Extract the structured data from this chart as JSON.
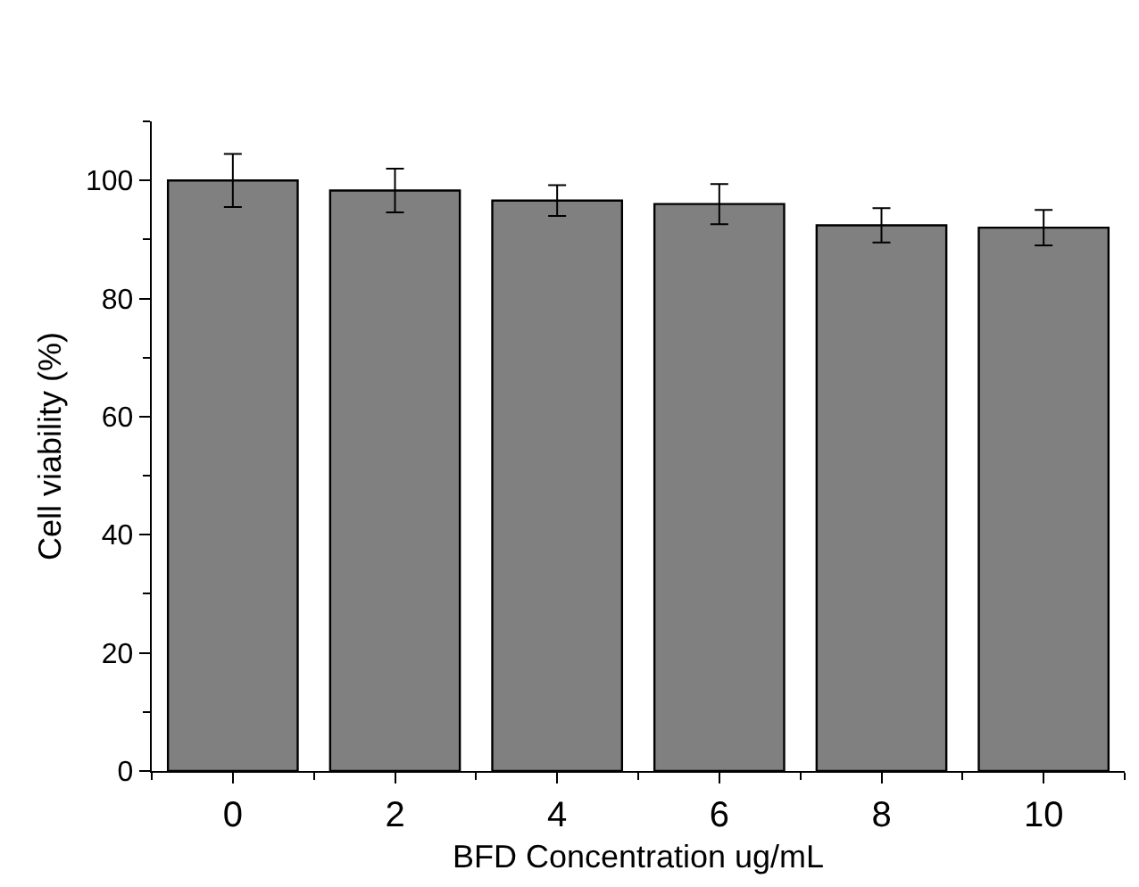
{
  "chart_data": {
    "type": "bar",
    "xlabel": "BFD Concentration ug/mL",
    "ylabel": "Cell viability (%)",
    "categories": [
      "0",
      "2",
      "4",
      "6",
      "8",
      "10"
    ],
    "values": [
      100,
      98.3,
      96.6,
      96.0,
      92.4,
      92.0
    ],
    "errors": [
      4.5,
      3.7,
      2.6,
      3.4,
      2.9,
      3.0
    ],
    "color": "#808080",
    "ylim": [
      0,
      110
    ],
    "yticks": [
      0,
      20,
      40,
      60,
      80,
      100
    ],
    "grid": false
  }
}
